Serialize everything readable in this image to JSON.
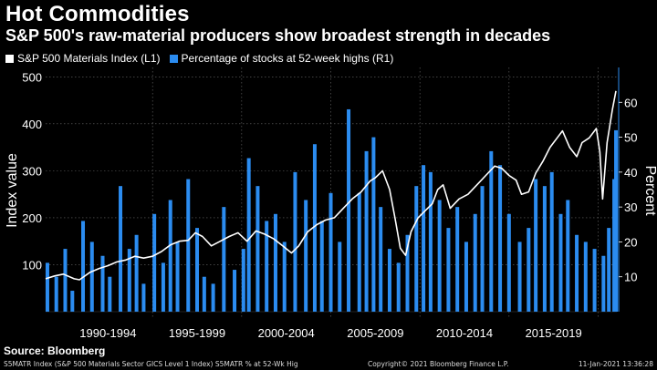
{
  "title": "Hot Commodities",
  "subtitle": "S&P 500's raw-material producers show broadest strength in decades",
  "legend": {
    "index_label": "S&P 500 Materials Index (L1)",
    "pct_label": "Percentage of stocks at 52-week highs (R1)"
  },
  "source": "Source: Bloomberg",
  "footer": {
    "left": "S5MATR Index (S&P 500 Materials Sector GICS Level 1 Index) S5MATR % at 52-Wk Hig",
    "center": "Copyright© 2021 Bloomberg Finance L.P.",
    "right": "11-Jan-2021 13:36:28"
  },
  "colors": {
    "index_line": "#ffffff",
    "pct_bars": "#2b8cf0",
    "grid": "#6a6a6a"
  },
  "chart_data": {
    "type": "line+bar",
    "x_range": [
      1989.0,
      2021.05
    ],
    "xlabel": "",
    "categories": [
      "1990-1994",
      "1995-1999",
      "2000-2004",
      "2005-2009",
      "2010-2014",
      "2015-2019"
    ],
    "category_ranges": [
      [
        1990,
        1995
      ],
      [
        1995,
        2000
      ],
      [
        2000,
        2005
      ],
      [
        2005,
        2010
      ],
      [
        2010,
        2015
      ],
      [
        2015,
        2020
      ]
    ],
    "left_axis": {
      "label": "Index value",
      "ylim": [
        0,
        520
      ],
      "ticks": [
        100,
        200,
        300,
        400,
        500
      ]
    },
    "right_axis": {
      "label": "Percent",
      "ylim": [
        0,
        70
      ],
      "ticks": [
        10,
        20,
        30,
        40,
        50,
        60
      ]
    },
    "grid": true,
    "legend_position": "top-left",
    "series": [
      {
        "name": "S&P 500 Materials Index (L1)",
        "axis": "left",
        "type": "line",
        "x": [
          1989.0,
          1989.5,
          1990.0,
          1990.6,
          1990.9,
          1991.5,
          1992.0,
          1992.5,
          1993.0,
          1993.5,
          1994.0,
          1994.5,
          1995.0,
          1995.5,
          1996.0,
          1996.5,
          1997.0,
          1997.4,
          1997.8,
          1998.3,
          1998.8,
          1999.3,
          1999.8,
          2000.3,
          2000.8,
          2001.3,
          2001.8,
          2002.3,
          2002.8,
          2003.2,
          2003.7,
          2004.2,
          2004.7,
          2005.2,
          2005.7,
          2006.2,
          2006.7,
          2007.2,
          2007.5,
          2007.9,
          2008.3,
          2008.6,
          2008.9,
          2009.2,
          2009.5,
          2009.9,
          2010.3,
          2010.7,
          2011.0,
          2011.3,
          2011.7,
          2012.2,
          2012.7,
          2013.2,
          2013.7,
          2014.2,
          2014.6,
          2015.0,
          2015.4,
          2015.7,
          2016.1,
          2016.5,
          2016.9,
          2017.3,
          2017.7,
          2018.0,
          2018.4,
          2018.8,
          2019.1,
          2019.5,
          2019.9,
          2020.1,
          2020.25,
          2020.5,
          2020.8,
          2021.0
        ],
        "y": [
          70,
          76,
          80,
          70,
          68,
          84,
          92,
          98,
          106,
          110,
          118,
          114,
          118,
          128,
          142,
          150,
          152,
          168,
          160,
          140,
          150,
          160,
          168,
          150,
          172,
          165,
          155,
          140,
          125,
          140,
          170,
          185,
          195,
          200,
          220,
          240,
          255,
          278,
          285,
          300,
          260,
          200,
          135,
          120,
          170,
          200,
          215,
          230,
          260,
          270,
          220,
          240,
          250,
          270,
          290,
          310,
          305,
          290,
          280,
          250,
          255,
          295,
          320,
          350,
          370,
          385,
          350,
          330,
          360,
          370,
          390,
          340,
          240,
          360,
          430,
          470
        ]
      },
      {
        "name": "Percentage of stocks at 52-week highs (R1)",
        "axis": "right",
        "type": "bar",
        "x": [
          1989.1,
          1989.6,
          1990.1,
          1990.5,
          1991.1,
          1991.6,
          1992.2,
          1992.6,
          1993.2,
          1993.7,
          1994.1,
          1994.5,
          1995.1,
          1995.6,
          1996.0,
          1996.4,
          1997.0,
          1997.5,
          1997.9,
          1998.4,
          1999.0,
          1999.6,
          2000.1,
          2000.4,
          2000.9,
          2001.4,
          2001.9,
          2002.4,
          2003.0,
          2003.6,
          2004.1,
          2004.5,
          2005.0,
          2005.5,
          2006.0,
          2006.6,
          2007.0,
          2007.4,
          2007.8,
          2008.3,
          2008.8,
          2009.3,
          2009.8,
          2010.2,
          2010.6,
          2011.1,
          2011.6,
          2012.1,
          2012.6,
          2013.1,
          2013.5,
          2014.0,
          2014.5,
          2015.0,
          2015.6,
          2016.1,
          2016.5,
          2017.0,
          2017.4,
          2017.9,
          2018.3,
          2018.8,
          2019.3,
          2019.8,
          2020.3,
          2020.6,
          2020.9,
          2021.0
        ],
        "y": [
          14,
          10,
          18,
          6,
          26,
          20,
          16,
          10,
          36,
          18,
          22,
          8,
          28,
          14,
          32,
          20,
          38,
          24,
          10,
          8,
          30,
          12,
          18,
          44,
          36,
          26,
          28,
          20,
          40,
          32,
          48,
          26,
          34,
          20,
          58,
          34,
          46,
          50,
          30,
          18,
          14,
          22,
          36,
          42,
          40,
          32,
          24,
          30,
          20,
          28,
          36,
          46,
          42,
          28,
          20,
          24,
          38,
          36,
          40,
          28,
          32,
          22,
          20,
          18,
          16,
          24,
          38,
          52
        ]
      }
    ]
  }
}
